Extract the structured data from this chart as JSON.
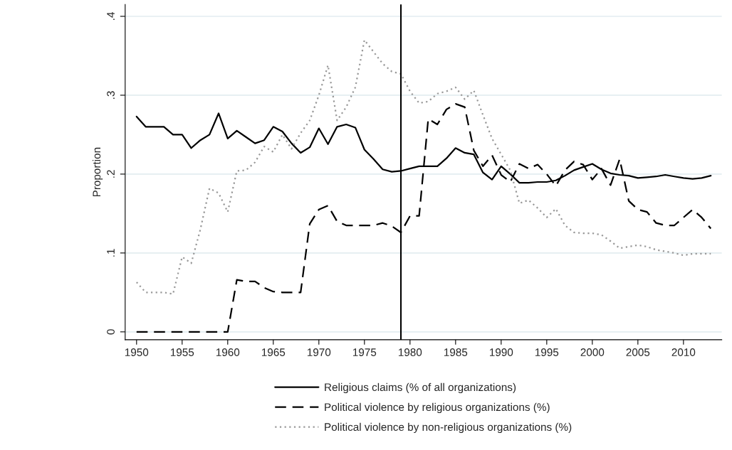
{
  "chart_data": {
    "type": "line",
    "ylabel": "Proportion",
    "x": [
      1950,
      1951,
      1952,
      1953,
      1954,
      1955,
      1956,
      1957,
      1958,
      1959,
      1960,
      1961,
      1962,
      1963,
      1964,
      1965,
      1966,
      1967,
      1968,
      1969,
      1970,
      1971,
      1972,
      1973,
      1974,
      1975,
      1976,
      1977,
      1978,
      1979,
      1980,
      1981,
      1982,
      1983,
      1984,
      1985,
      1986,
      1987,
      1988,
      1989,
      1990,
      1991,
      1992,
      1993,
      1994,
      1995,
      1996,
      1997,
      1998,
      1999,
      2000,
      2001,
      2002,
      2003,
      2004,
      2005,
      2006,
      2007,
      2008,
      2009,
      2010,
      2011,
      2012,
      2013
    ],
    "series": [
      {
        "name": "Religious claims (% of all organizations)",
        "color": "#000000",
        "line_style": "solid",
        "values": [
          0.273,
          0.26,
          0.26,
          0.26,
          0.25,
          0.25,
          0.233,
          0.243,
          0.25,
          0.277,
          0.245,
          0.255,
          0.247,
          0.239,
          0.243,
          0.26,
          0.254,
          0.239,
          0.227,
          0.234,
          0.258,
          0.238,
          0.26,
          0.263,
          0.259,
          0.231,
          0.219,
          0.206,
          0.203,
          0.204,
          0.207,
          0.21,
          0.21,
          0.21,
          0.22,
          0.233,
          0.227,
          0.225,
          0.202,
          0.193,
          0.21,
          0.2,
          0.189,
          0.189,
          0.19,
          0.19,
          0.192,
          0.198,
          0.205,
          0.209,
          0.213,
          0.206,
          0.201,
          0.199,
          0.198,
          0.195,
          0.196,
          0.197,
          0.199,
          0.197,
          0.195,
          0.194,
          0.195,
          0.198
        ]
      },
      {
        "name": "Political violence by religious organizations (%)",
        "color": "#000000",
        "line_style": "dashed",
        "values": [
          0,
          0,
          0,
          0,
          0,
          0,
          0,
          0,
          0,
          0,
          0,
          0.066,
          0.064,
          0.064,
          0.056,
          0.051,
          0.05,
          0.05,
          0.05,
          0.137,
          0.155,
          0.16,
          0.14,
          0.135,
          0.135,
          0.135,
          0.135,
          0.138,
          0.134,
          0.126,
          0.147,
          0.147,
          0.27,
          0.263,
          0.282,
          0.289,
          0.285,
          0.23,
          0.21,
          0.224,
          0.199,
          0.19,
          0.213,
          0.207,
          0.212,
          0.2,
          0.185,
          0.205,
          0.216,
          0.212,
          0.193,
          0.207,
          0.186,
          0.219,
          0.166,
          0.155,
          0.152,
          0.138,
          0.135,
          0.135,
          0.145,
          0.155,
          0.145,
          0.131
        ]
      },
      {
        "name": "Political violence by non-religious organizations (%)",
        "color": "#999999",
        "line_style": "dotted",
        "values": [
          0.063,
          0.05,
          0.05,
          0.05,
          0.048,
          0.095,
          0.087,
          0.13,
          0.182,
          0.176,
          0.152,
          0.204,
          0.205,
          0.215,
          0.235,
          0.228,
          0.25,
          0.232,
          0.252,
          0.268,
          0.3,
          0.338,
          0.268,
          0.285,
          0.31,
          0.37,
          0.355,
          0.34,
          0.33,
          0.327,
          0.305,
          0.29,
          0.292,
          0.302,
          0.305,
          0.31,
          0.295,
          0.306,
          0.275,
          0.245,
          0.225,
          0.205,
          0.163,
          0.167,
          0.157,
          0.145,
          0.156,
          0.135,
          0.126,
          0.125,
          0.125,
          0.123,
          0.115,
          0.106,
          0.108,
          0.11,
          0.108,
          0.104,
          0.102,
          0.1,
          0.097,
          0.099,
          0.099,
          0.099
        ]
      }
    ],
    "xlim": [
      1948.75,
      2014.2
    ],
    "xticks": [
      1950,
      1955,
      1960,
      1965,
      1970,
      1975,
      1980,
      1985,
      1990,
      1995,
      2000,
      2005,
      2010
    ],
    "ylim": [
      -0.01,
      0.415
    ],
    "yticks": [
      {
        "value": 0,
        "label": "0"
      },
      {
        "value": 0.1,
        "label": ".1"
      },
      {
        "value": 0.2,
        "label": ".2"
      },
      {
        "value": 0.3,
        "label": ".3"
      },
      {
        "value": 0.4,
        "label": ".4"
      }
    ],
    "ref_lines": [
      {
        "axis": "x",
        "value": 1979,
        "color": "#000000",
        "line_style": "solid"
      }
    ],
    "grid": "y",
    "legend": "bottom",
    "marker": "none"
  }
}
